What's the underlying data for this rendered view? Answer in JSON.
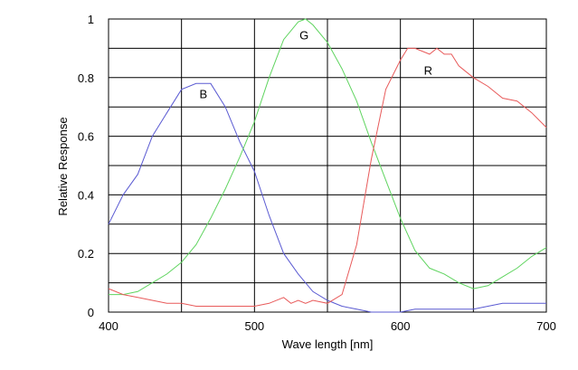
{
  "chart_data": {
    "type": "line",
    "title": "",
    "xlabel": "Wave length [nm]",
    "ylabel": "Relative Response",
    "xlim": [
      400,
      700
    ],
    "ylim": [
      0,
      1
    ],
    "x_ticks": [
      "400",
      "500",
      "600",
      "700"
    ],
    "y_ticks": [
      "0",
      "0.2",
      "0.4",
      "0.6",
      "0.8",
      "1"
    ],
    "grid": true,
    "series": [
      {
        "name": "B",
        "color": "#5a5ad2",
        "label_at": [
          465,
          0.73
        ],
        "points": [
          [
            400,
            0.3
          ],
          [
            410,
            0.4
          ],
          [
            420,
            0.47
          ],
          [
            430,
            0.6
          ],
          [
            440,
            0.68
          ],
          [
            450,
            0.76
          ],
          [
            460,
            0.78
          ],
          [
            470,
            0.78
          ],
          [
            480,
            0.7
          ],
          [
            490,
            0.58
          ],
          [
            500,
            0.48
          ],
          [
            510,
            0.33
          ],
          [
            520,
            0.2
          ],
          [
            530,
            0.13
          ],
          [
            540,
            0.07
          ],
          [
            550,
            0.04
          ],
          [
            560,
            0.02
          ],
          [
            570,
            0.01
          ],
          [
            580,
            0.0
          ],
          [
            590,
            0.0
          ],
          [
            600,
            0.0
          ],
          [
            610,
            0.01
          ],
          [
            620,
            0.01
          ],
          [
            630,
            0.01
          ],
          [
            640,
            0.01
          ],
          [
            650,
            0.01
          ],
          [
            660,
            0.02
          ],
          [
            670,
            0.03
          ],
          [
            680,
            0.03
          ],
          [
            690,
            0.03
          ],
          [
            700,
            0.03
          ]
        ]
      },
      {
        "name": "G",
        "color": "#5fd45f",
        "label_at": [
          534,
          0.93
        ],
        "points": [
          [
            400,
            0.06
          ],
          [
            410,
            0.06
          ],
          [
            420,
            0.07
          ],
          [
            430,
            0.1
          ],
          [
            440,
            0.13
          ],
          [
            450,
            0.17
          ],
          [
            460,
            0.23
          ],
          [
            470,
            0.32
          ],
          [
            480,
            0.42
          ],
          [
            490,
            0.53
          ],
          [
            500,
            0.65
          ],
          [
            510,
            0.8
          ],
          [
            520,
            0.93
          ],
          [
            530,
            0.99
          ],
          [
            535,
            1.0
          ],
          [
            540,
            0.98
          ],
          [
            550,
            0.92
          ],
          [
            560,
            0.83
          ],
          [
            570,
            0.72
          ],
          [
            580,
            0.58
          ],
          [
            590,
            0.45
          ],
          [
            600,
            0.32
          ],
          [
            610,
            0.21
          ],
          [
            620,
            0.15
          ],
          [
            630,
            0.13
          ],
          [
            640,
            0.1
          ],
          [
            650,
            0.08
          ],
          [
            660,
            0.09
          ],
          [
            670,
            0.12
          ],
          [
            680,
            0.15
          ],
          [
            690,
            0.19
          ],
          [
            700,
            0.22
          ]
        ]
      },
      {
        "name": "R",
        "color": "#e85a5a",
        "label_at": [
          619,
          0.81
        ],
        "points": [
          [
            400,
            0.08
          ],
          [
            410,
            0.06
          ],
          [
            420,
            0.05
          ],
          [
            430,
            0.04
          ],
          [
            440,
            0.03
          ],
          [
            450,
            0.03
          ],
          [
            460,
            0.02
          ],
          [
            470,
            0.02
          ],
          [
            480,
            0.02
          ],
          [
            490,
            0.02
          ],
          [
            500,
            0.02
          ],
          [
            510,
            0.03
          ],
          [
            520,
            0.05
          ],
          [
            525,
            0.03
          ],
          [
            530,
            0.04
          ],
          [
            535,
            0.03
          ],
          [
            540,
            0.04
          ],
          [
            550,
            0.03
          ],
          [
            560,
            0.06
          ],
          [
            570,
            0.23
          ],
          [
            580,
            0.52
          ],
          [
            590,
            0.76
          ],
          [
            600,
            0.86
          ],
          [
            605,
            0.9
          ],
          [
            610,
            0.9
          ],
          [
            620,
            0.88
          ],
          [
            625,
            0.9
          ],
          [
            630,
            0.88
          ],
          [
            635,
            0.88
          ],
          [
            640,
            0.84
          ],
          [
            650,
            0.8
          ],
          [
            660,
            0.77
          ],
          [
            670,
            0.73
          ],
          [
            680,
            0.72
          ],
          [
            690,
            0.68
          ],
          [
            700,
            0.63
          ]
        ]
      }
    ]
  },
  "colors": {
    "grid": "#000000",
    "background": "#ffffff"
  }
}
